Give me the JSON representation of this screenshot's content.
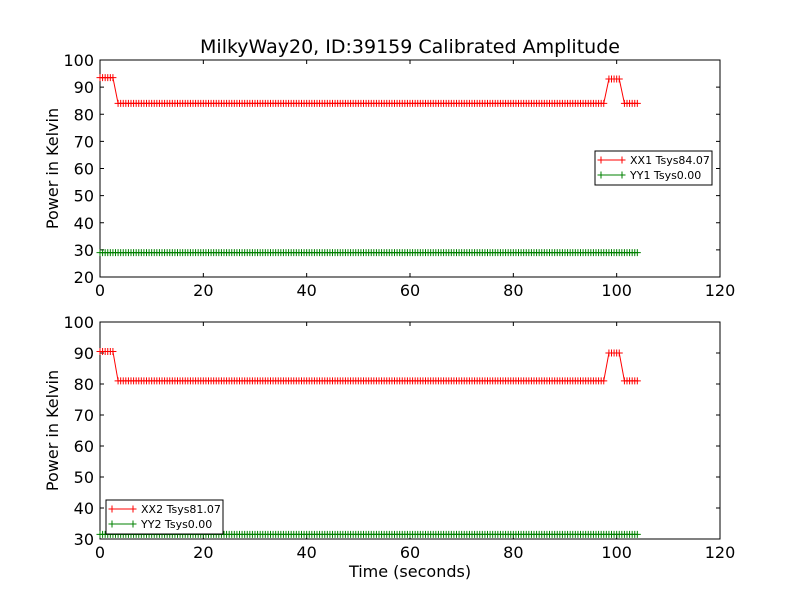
{
  "figure": {
    "title": "MilkyWay20, ID:39159 Calibrated Amplitude",
    "xlabel": "Time (seconds)"
  },
  "chart_data": [
    {
      "type": "line",
      "ylabel": "Power in Kelvin",
      "xlim": [
        0,
        120
      ],
      "ylim": [
        20,
        100
      ],
      "xticks": [
        0,
        20,
        40,
        60,
        80,
        100,
        120
      ],
      "yticks": [
        20,
        30,
        40,
        50,
        60,
        70,
        80,
        90,
        100
      ],
      "grid": false,
      "legend_placement": "center-right",
      "series": [
        {
          "name": "XX1 Tsys84.07",
          "color": "#ff0000",
          "marker": "+",
          "segments": [
            {
              "x_start": 0,
              "x_end": 2.5,
              "value": 93.5
            },
            {
              "x_start": 3.5,
              "x_end": 97.5,
              "value": 84.0
            },
            {
              "x_start": 98.5,
              "x_end": 100.5,
              "value": 93.0
            },
            {
              "x_start": 101.5,
              "x_end": 104,
              "value": 84.0
            }
          ]
        },
        {
          "name": "YY1 Tsys0.00",
          "color": "#008000",
          "marker": "+",
          "segments": [
            {
              "x_start": 0,
              "x_end": 104,
              "value": 29.0
            }
          ]
        }
      ]
    },
    {
      "type": "line",
      "ylabel": "Power in Kelvin",
      "xlim": [
        0,
        120
      ],
      "ylim": [
        30,
        100
      ],
      "xticks": [
        0,
        20,
        40,
        60,
        80,
        100,
        120
      ],
      "yticks": [
        30,
        40,
        50,
        60,
        70,
        80,
        90,
        100
      ],
      "grid": false,
      "legend_placement": "lower-left",
      "series": [
        {
          "name": "XX2 Tsys81.07",
          "color": "#ff0000",
          "marker": "+",
          "segments": [
            {
              "x_start": 0,
              "x_end": 2.5,
              "value": 90.5
            },
            {
              "x_start": 3.5,
              "x_end": 97.5,
              "value": 81.0
            },
            {
              "x_start": 98.5,
              "x_end": 100.5,
              "value": 90.0
            },
            {
              "x_start": 101.5,
              "x_end": 104,
              "value": 81.0
            }
          ]
        },
        {
          "name": "YY2 Tsys0.00",
          "color": "#008000",
          "marker": "+",
          "segments": [
            {
              "x_start": 0,
              "x_end": 104,
              "value": 31.5
            }
          ]
        }
      ]
    }
  ]
}
